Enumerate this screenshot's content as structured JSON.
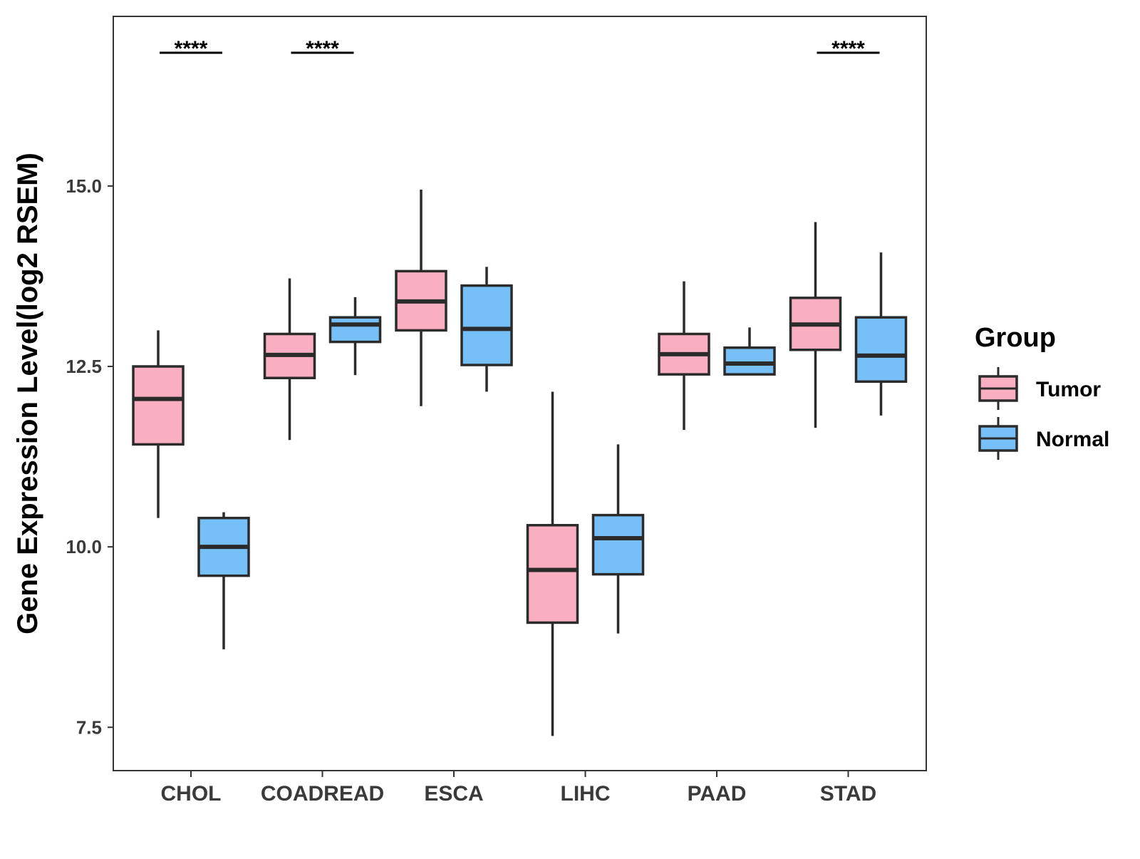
{
  "chart_data": {
    "type": "boxplot",
    "title": "",
    "xlabel": "",
    "ylabel": "Gene Expression Level(log2 RSEM)",
    "ylim": [
      6.9,
      17.35
    ],
    "y_ticks": [
      "7.5",
      "10.0",
      "12.5",
      "15.0"
    ],
    "y_tick_values": [
      7.5,
      10.0,
      12.5,
      15.0
    ],
    "grid": false,
    "categories": [
      "CHOL",
      "COADREAD",
      "ESCA",
      "LIHC",
      "PAAD",
      "STAD"
    ],
    "legend": {
      "title": "Group",
      "placement": "right",
      "entries": [
        "Tumor",
        "Normal"
      ]
    },
    "colors": {
      "Tumor": "#F9AFC1",
      "Normal": "#76C0F7",
      "outline": "#2b2b2b"
    },
    "series": [
      {
        "name": "Tumor",
        "boxes": [
          {
            "min": 10.4,
            "q1": 11.42,
            "median": 12.05,
            "q3": 12.5,
            "max": 13.0
          },
          {
            "min": 11.48,
            "q1": 12.34,
            "median": 12.66,
            "q3": 12.95,
            "max": 13.72
          },
          {
            "min": 11.95,
            "q1": 13.0,
            "median": 13.4,
            "q3": 13.82,
            "max": 14.95
          },
          {
            "min": 7.38,
            "q1": 8.95,
            "median": 9.68,
            "q3": 10.3,
            "max": 12.15
          },
          {
            "min": 11.62,
            "q1": 12.39,
            "median": 12.67,
            "q3": 12.95,
            "max": 13.68
          },
          {
            "min": 11.65,
            "q1": 12.73,
            "median": 13.08,
            "q3": 13.45,
            "max": 14.5
          }
        ]
      },
      {
        "name": "Normal",
        "boxes": [
          {
            "min": 8.58,
            "q1": 9.6,
            "median": 10.0,
            "q3": 10.4,
            "max": 10.48
          },
          {
            "min": 12.38,
            "q1": 12.84,
            "median": 13.08,
            "q3": 13.18,
            "max": 13.46
          },
          {
            "min": 12.15,
            "q1": 12.52,
            "median": 13.02,
            "q3": 13.62,
            "max": 13.88
          },
          {
            "min": 8.8,
            "q1": 9.62,
            "median": 10.12,
            "q3": 10.44,
            "max": 11.42
          },
          {
            "min": 12.39,
            "q1": 12.39,
            "median": 12.54,
            "q3": 12.76,
            "max": 13.04
          },
          {
            "min": 11.82,
            "q1": 12.29,
            "median": 12.65,
            "q3": 13.18,
            "max": 14.08
          }
        ]
      }
    ],
    "annotations": [
      {
        "category": "CHOL",
        "label": "****"
      },
      {
        "category": "COADREAD",
        "label": "****"
      },
      {
        "category": "STAD",
        "label": "****"
      }
    ]
  }
}
